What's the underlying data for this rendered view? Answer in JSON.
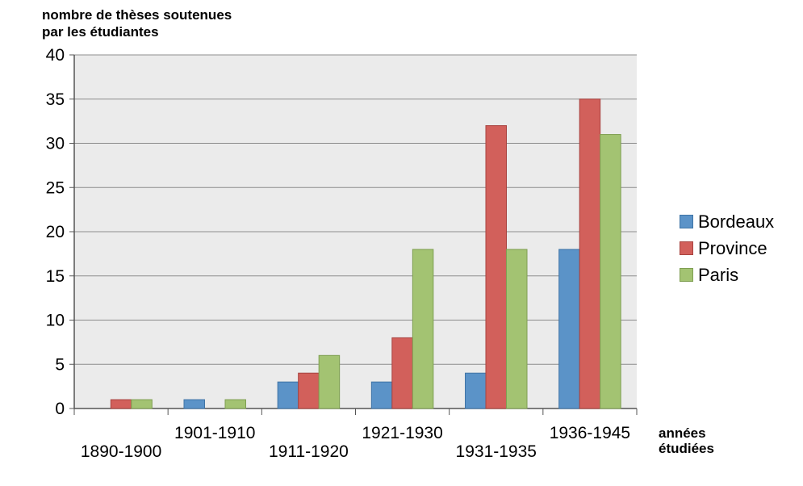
{
  "chart_data": {
    "type": "bar",
    "ylabel_lines": [
      "nombre de thèses soutenues",
      "par les étudiantes"
    ],
    "xlabel_lines": [
      "années",
      "étudiées"
    ],
    "categories": [
      "1890-1900",
      "1901-1910",
      "1911-1920",
      "1921-1930",
      "1931-1935",
      "1936-1945"
    ],
    "series": [
      {
        "name": "Bordeaux",
        "color": "#5b93c8",
        "values": [
          0,
          1,
          3,
          3,
          4,
          18
        ]
      },
      {
        "name": "Province",
        "color": "#d2605b",
        "values": [
          1,
          0,
          4,
          8,
          32,
          35
        ]
      },
      {
        "name": "Paris",
        "color": "#a3c372",
        "values": [
          1,
          1,
          6,
          18,
          18,
          31
        ]
      }
    ],
    "yticks": [
      "0",
      "5",
      "10",
      "15",
      "20",
      "25",
      "30",
      "35",
      "40"
    ],
    "ylim": [
      0,
      40
    ],
    "grid": true,
    "legend_position": "right"
  }
}
